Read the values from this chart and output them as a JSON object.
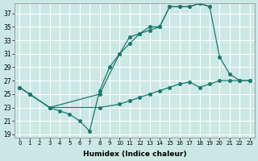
{
  "xlabel": "Humidex (Indice chaleur)",
  "bg_color": "#cce8e5",
  "grid_color": "#ffffff",
  "line_color": "#1a7a6e",
  "xlim": [
    -0.5,
    23.5
  ],
  "ylim": [
    18.5,
    38.5
  ],
  "xticks": [
    0,
    1,
    2,
    3,
    4,
    5,
    6,
    7,
    8,
    9,
    10,
    11,
    12,
    13,
    14,
    15,
    16,
    17,
    18,
    19,
    20,
    21,
    22,
    23
  ],
  "yticks": [
    19,
    21,
    23,
    25,
    27,
    29,
    31,
    33,
    35,
    37
  ],
  "line1_x": [
    0,
    1,
    3,
    4,
    5,
    6,
    7,
    8,
    9,
    10,
    11,
    12,
    13,
    14,
    15,
    16,
    17,
    18,
    19,
    20,
    21,
    22,
    23
  ],
  "line1_y": [
    26,
    25,
    23,
    22.5,
    22,
    21,
    19.5,
    25.5,
    29,
    31,
    33.5,
    34,
    35,
    35,
    38,
    38,
    38,
    38.5,
    38,
    30.5,
    28,
    27,
    27
  ],
  "line2_x": [
    0,
    1,
    3,
    8,
    10,
    11,
    12,
    13,
    14,
    15,
    16,
    17,
    18,
    19
  ],
  "line2_y": [
    26,
    25,
    23,
    25,
    31,
    32.5,
    34,
    34.5,
    35,
    38,
    38,
    38,
    38.5,
    38
  ],
  "line3_x": [
    0,
    1,
    3,
    8,
    10,
    11,
    12,
    13,
    14,
    15,
    16,
    17,
    18,
    19,
    20,
    21,
    22,
    23
  ],
  "line3_y": [
    26,
    25,
    23,
    23,
    23.5,
    24,
    24.5,
    25,
    25.5,
    26,
    26.5,
    26.8,
    26,
    26.5,
    27,
    27,
    27,
    27
  ]
}
